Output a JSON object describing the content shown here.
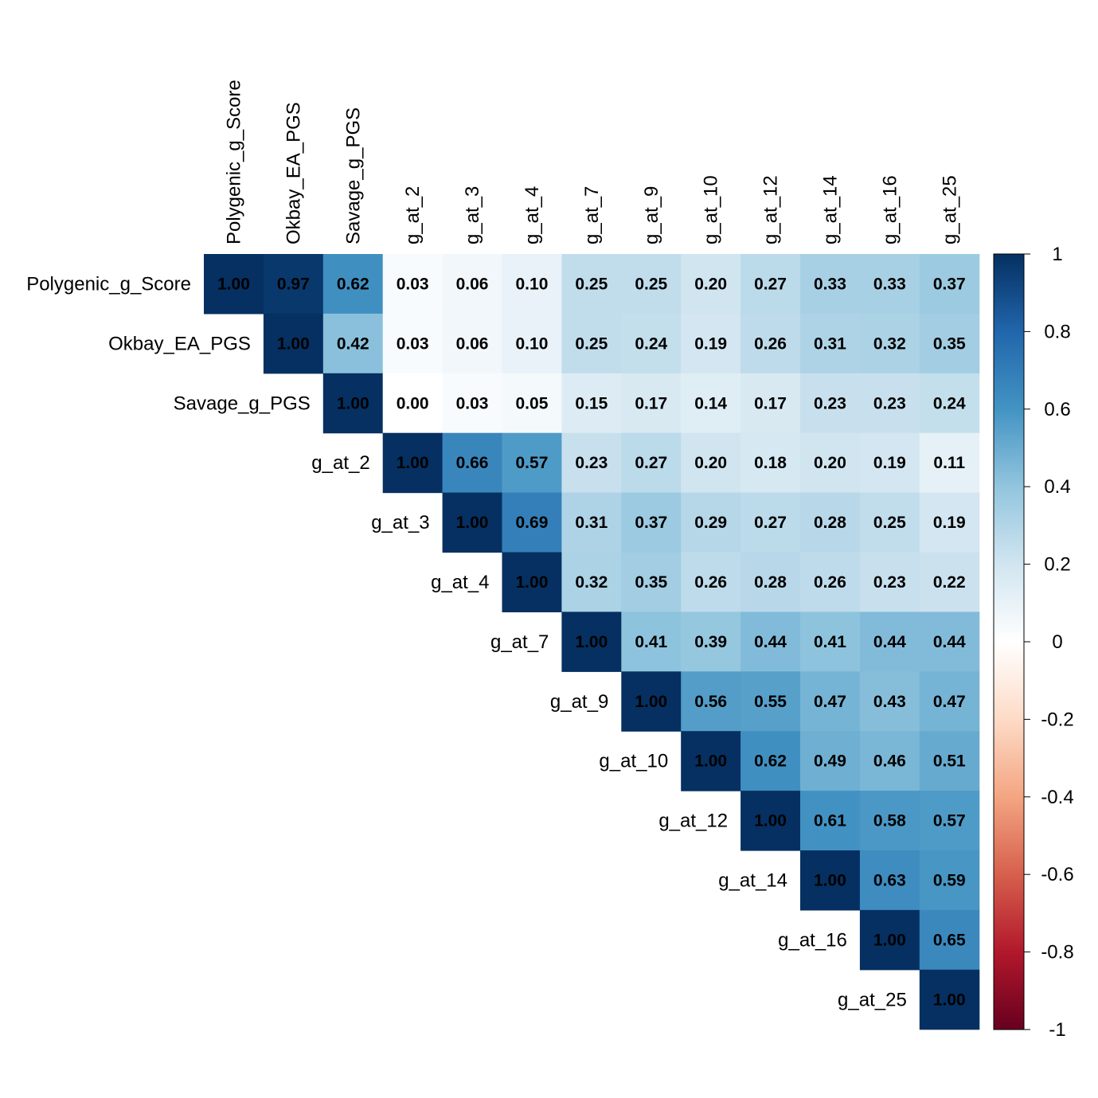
{
  "chart_data": {
    "type": "heatmap",
    "layout": "upper-triangle",
    "variables": [
      "Polygenic_g_Score",
      "Okbay_EA_PGS",
      "Savage_g_PGS",
      "g_at_2",
      "g_at_3",
      "g_at_4",
      "g_at_7",
      "g_at_9",
      "g_at_10",
      "g_at_12",
      "g_at_14",
      "g_at_16",
      "g_at_25"
    ],
    "values": [
      [
        "1.00",
        "0.97",
        "0.62",
        "0.03",
        "0.06",
        "0.10",
        "0.25",
        "0.25",
        "0.20",
        "0.27",
        "0.33",
        "0.33",
        "0.37"
      ],
      [
        null,
        "1.00",
        "0.42",
        "0.03",
        "0.06",
        "0.10",
        "0.25",
        "0.24",
        "0.19",
        "0.26",
        "0.31",
        "0.32",
        "0.35"
      ],
      [
        null,
        null,
        "1.00",
        "0.00",
        "0.03",
        "0.05",
        "0.15",
        "0.17",
        "0.14",
        "0.17",
        "0.23",
        "0.23",
        "0.24"
      ],
      [
        null,
        null,
        null,
        "1.00",
        "0.66",
        "0.57",
        "0.23",
        "0.27",
        "0.20",
        "0.18",
        "0.20",
        "0.19",
        "0.11"
      ],
      [
        null,
        null,
        null,
        null,
        "1.00",
        "0.69",
        "0.31",
        "0.37",
        "0.29",
        "0.27",
        "0.28",
        "0.25",
        "0.19"
      ],
      [
        null,
        null,
        null,
        null,
        null,
        "1.00",
        "0.32",
        "0.35",
        "0.26",
        "0.28",
        "0.26",
        "0.23",
        "0.22"
      ],
      [
        null,
        null,
        null,
        null,
        null,
        null,
        "1.00",
        "0.41",
        "0.39",
        "0.44",
        "0.41",
        "0.44",
        "0.44"
      ],
      [
        null,
        null,
        null,
        null,
        null,
        null,
        null,
        "1.00",
        "0.56",
        "0.55",
        "0.47",
        "0.43",
        "0.47"
      ],
      [
        null,
        null,
        null,
        null,
        null,
        null,
        null,
        null,
        "1.00",
        "0.62",
        "0.49",
        "0.46",
        "0.51"
      ],
      [
        null,
        null,
        null,
        null,
        null,
        null,
        null,
        null,
        null,
        "1.00",
        "0.61",
        "0.58",
        "0.57"
      ],
      [
        null,
        null,
        null,
        null,
        null,
        null,
        null,
        null,
        null,
        null,
        "1.00",
        "0.63",
        "0.59"
      ],
      [
        null,
        null,
        null,
        null,
        null,
        null,
        null,
        null,
        null,
        null,
        null,
        "1.00",
        "0.65"
      ],
      [
        null,
        null,
        null,
        null,
        null,
        null,
        null,
        null,
        null,
        null,
        null,
        null,
        "1.00"
      ]
    ],
    "colorbar": {
      "range": [
        -1,
        1
      ],
      "tick_labels": [
        "1",
        "0.8",
        "0.6",
        "0.4",
        "0.2",
        "0",
        "-0.2",
        "-0.4",
        "-0.6",
        "-0.8",
        "-1"
      ],
      "colors": [
        "#67001F",
        "#B2182B",
        "#D6604D",
        "#F4A582",
        "#FDDBC7",
        "#FFFFFF",
        "#D1E5F0",
        "#92C5DE",
        "#4393C3",
        "#2166AC",
        "#053061"
      ]
    },
    "cell_text_color": "#000000",
    "legend_position": "right",
    "grid": false
  }
}
